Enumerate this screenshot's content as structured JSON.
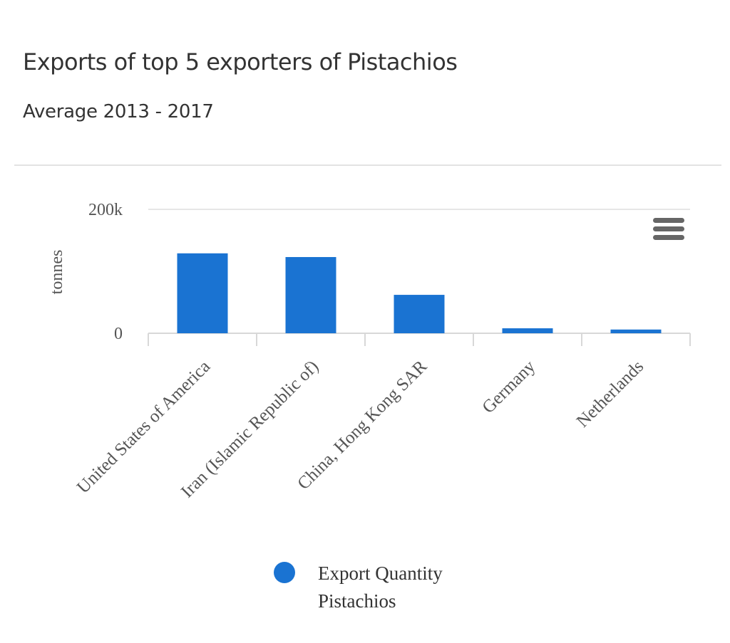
{
  "header": {
    "title": "Exports of top 5 exporters of Pistachios",
    "subtitle": "Average 2013 - 2017"
  },
  "menu": {
    "icon": "hamburger-menu-icon"
  },
  "legend": {
    "line1": "Export Quantity",
    "line2": "Pistachios",
    "color": "#1a73d2"
  },
  "chart_data": {
    "type": "bar",
    "title": "Exports of top 5 exporters of Pistachios",
    "subtitle": "Average 2013 - 2017",
    "xlabel": "",
    "ylabel": "tonnes",
    "categories": [
      "United States of America",
      "Iran (Islamic Republic of)",
      "China, Hong Kong SAR",
      "Germany",
      "Netherlands"
    ],
    "series": [
      {
        "name": "Export Quantity Pistachios",
        "color": "#1a73d2",
        "values": [
          129000,
          123000,
          62000,
          8000,
          6000
        ]
      }
    ],
    "yticks": [
      0,
      200000
    ],
    "ytick_labels": [
      "0",
      "200k"
    ],
    "ylim": [
      0,
      200000
    ],
    "grid": true,
    "legend_position": "bottom"
  }
}
